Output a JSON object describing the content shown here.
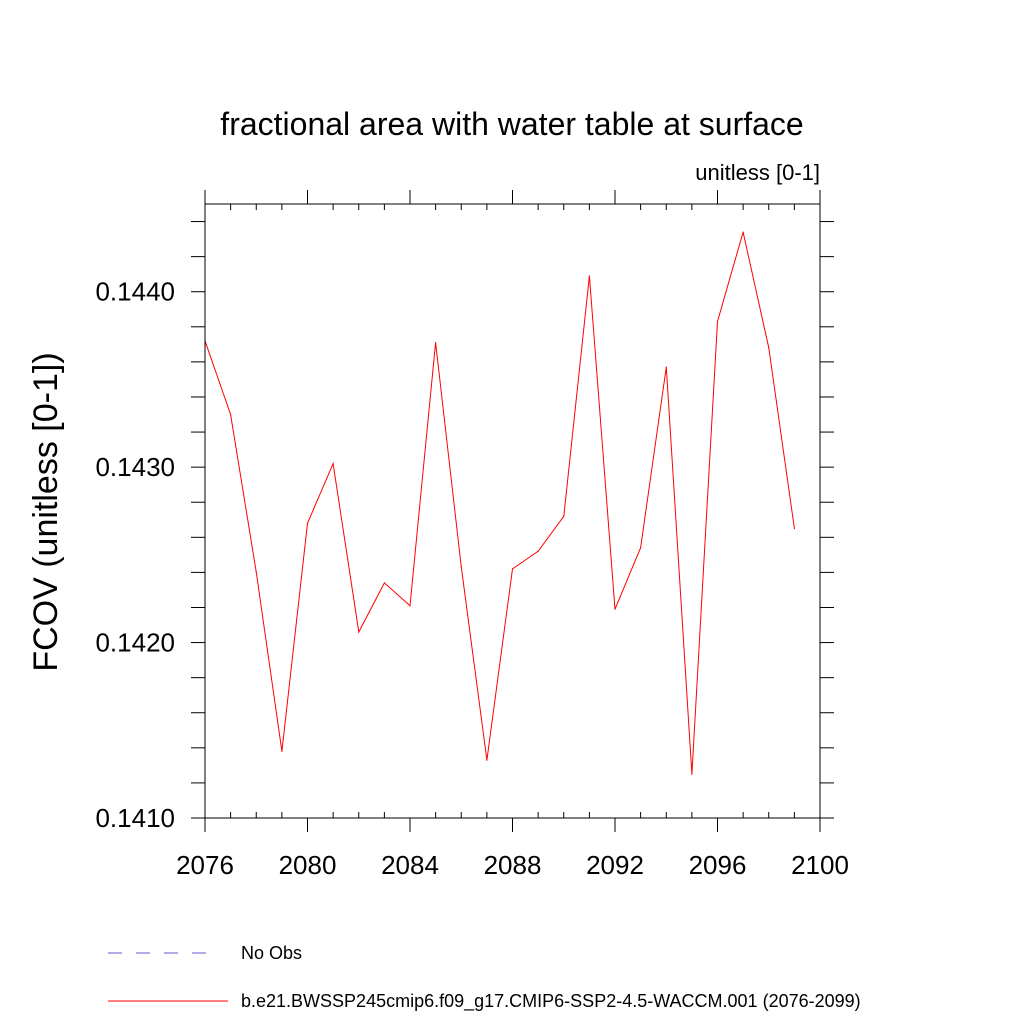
{
  "chart_data": {
    "type": "line",
    "title": "fractional area with water table at surface",
    "units_label": "unitless [0-1]",
    "ylabel": "FCOV  (unitless [0-1])",
    "xlabel": "",
    "xlim": [
      2076,
      2100
    ],
    "ylim": [
      0.141,
      0.1445
    ],
    "x_ticks": [
      2076,
      2080,
      2084,
      2088,
      2092,
      2096,
      2100
    ],
    "x_tick_labels": [
      "2076",
      "2080",
      "2084",
      "2088",
      "2092",
      "2096",
      "2100"
    ],
    "y_ticks": [
      0.141,
      0.142,
      0.143,
      0.144
    ],
    "y_tick_labels": [
      "0.1410",
      "0.1420",
      "0.1430",
      "0.1440"
    ],
    "series": [
      {
        "name": "b.e21.BWSSP245cmip6.f09_g17.CMIP6-SSP2-4.5-WACCM.001 (2076-2099)",
        "color": "#ff0000",
        "x": [
          2076,
          2077,
          2078,
          2079,
          2080,
          2081,
          2082,
          2083,
          2084,
          2085,
          2086,
          2087,
          2088,
          2089,
          2090,
          2091,
          2092,
          2093,
          2094,
          2095,
          2096,
          2097,
          2098,
          2099
        ],
        "values": [
          0.14372,
          0.1433,
          0.1424,
          0.14138,
          0.14268,
          0.14302,
          0.14206,
          0.14234,
          0.14221,
          0.14371,
          0.14243,
          0.14133,
          0.14242,
          0.14252,
          0.14272,
          0.14409,
          0.14219,
          0.14254,
          0.14357,
          0.14125,
          0.14383,
          0.14434,
          0.14368,
          0.14265
        ]
      }
    ],
    "legend": [
      {
        "label": "No Obs",
        "color": "#6a5acd",
        "style": "dashed"
      },
      {
        "label": "b.e21.BWSSP245cmip6.f09_g17.CMIP6-SSP2-4.5-WACCM.001 (2076-2099)",
        "color": "#ff0000",
        "style": "solid"
      }
    ]
  }
}
